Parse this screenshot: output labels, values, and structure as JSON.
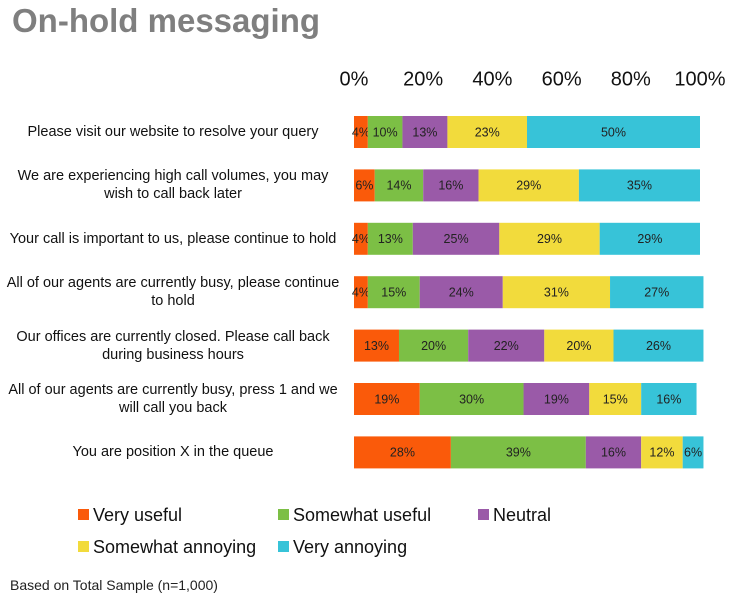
{
  "chart_data": {
    "type": "bar",
    "orientation": "horizontal",
    "stacked": true,
    "title": "On-hold messaging",
    "note": "Based on Total Sample (n=1,000)",
    "categories": [
      "Please visit our website to resolve your query",
      "We are experiencing high call volumes, you may wish to call back later",
      "Your call is important to us, please continue to hold",
      "All of our agents are currently busy, please continue to hold",
      "Our offices are currently closed.  Please call back during business hours",
      "All of our agents are currently busy, press 1 and we will call you back",
      "You are position X in the queue"
    ],
    "series": [
      {
        "name": "Very useful",
        "color": "#fa5a0a",
        "values": [
          4,
          6,
          4,
          4,
          13,
          19,
          28
        ],
        "value_labels": [
          "4%",
          "6%",
          "4%",
          "4%",
          "13%",
          "19%",
          "28%"
        ]
      },
      {
        "name": "Somewhat useful",
        "color": "#7cbf45",
        "values": [
          10,
          14,
          13,
          15,
          20,
          30,
          39
        ],
        "value_labels": [
          "10%",
          "14%",
          "13%",
          "15%",
          "20%",
          "30%",
          "39%"
        ]
      },
      {
        "name": "Neutral",
        "color": "#9a5aa8",
        "values": [
          13,
          16,
          25,
          24,
          22,
          19,
          16
        ],
        "value_labels": [
          "13%",
          "16%",
          "25%",
          "24%",
          "22%",
          "19%",
          "16%"
        ]
      },
      {
        "name": "Somewhat annoying",
        "color": "#f2db3c",
        "values": [
          23,
          29,
          29,
          31,
          20,
          15,
          12
        ],
        "value_labels": [
          "23%",
          "29%",
          "29%",
          "31%",
          "20%",
          "15%",
          "12%"
        ]
      },
      {
        "name": "Very annoying",
        "color": "#37c3d8",
        "values": [
          50,
          35,
          29,
          27,
          26,
          16,
          6
        ],
        "value_labels": [
          "50%",
          "35%",
          "29%",
          "27%",
          "26%",
          "16%",
          "6%"
        ]
      }
    ],
    "xlim": [
      0,
      100
    ],
    "xticks": [
      {
        "value": 0,
        "label": "0%"
      },
      {
        "value": 20,
        "label": "20%"
      },
      {
        "value": 40,
        "label": "40%"
      },
      {
        "value": 60,
        "label": "60%"
      },
      {
        "value": 80,
        "label": "80%"
      },
      {
        "value": 100,
        "label": "100%"
      }
    ],
    "legend": "bottom"
  }
}
